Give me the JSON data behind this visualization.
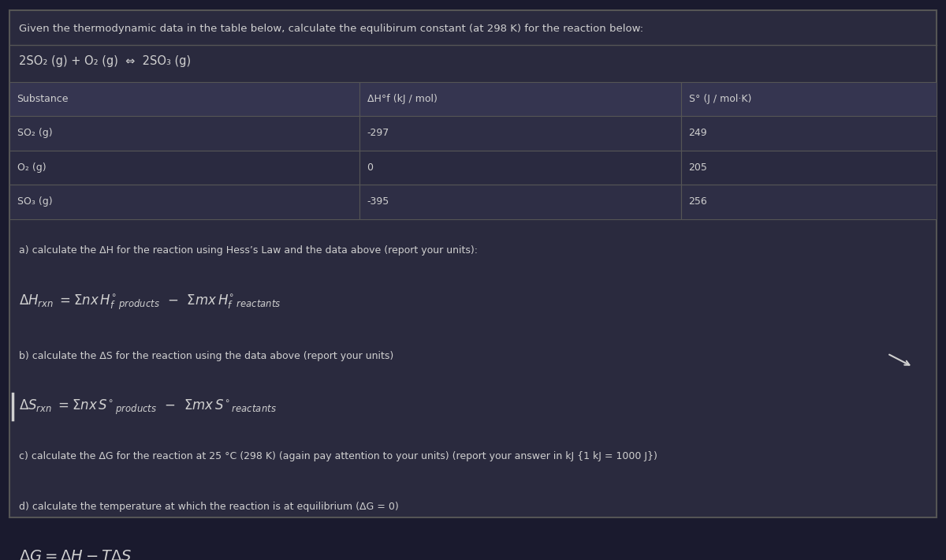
{
  "bg_color": "#1a1a2e",
  "box_bg": "#2a2a3e",
  "text_color": "#d0d0d0",
  "border_color": "#555555",
  "title_text": "Given the thermodynamic data in the table below, calculate the equlibirum constant (at 298 K) for the reaction below:",
  "reaction_text": "2SO₂ (g) + O₂ (g)  ⇔  2SO₃ (g)",
  "table_headers": [
    "Substance",
    "ΔH°f (kJ / mol)",
    "S° (J / mol·K)"
  ],
  "table_rows": [
    [
      "SO₂ (g)",
      "-297",
      "249"
    ],
    [
      "O₂ (g)",
      "0",
      "205"
    ],
    [
      "SO₃ (g)",
      "-395",
      "256"
    ]
  ],
  "part_a_label": "a) calculate the ΔH for the reaction using Hess’s Law and the data above (report your units):",
  "part_b_label": "b) calculate the ΔS for the reaction using the data above (report your units)",
  "part_c_label": "c) calculate the ΔG for the reaction at 25 °C (298 K) (again pay attention to your units) (report your answer in kJ {1 kJ = 1000 J})",
  "part_d_label": "d) calculate the temperature at which the reaction is at equilibrium (ΔG = 0)",
  "header_bg": "#353550",
  "row_colors": [
    "#2e2e45",
    "#2a2a40",
    "#2e2e45"
  ]
}
